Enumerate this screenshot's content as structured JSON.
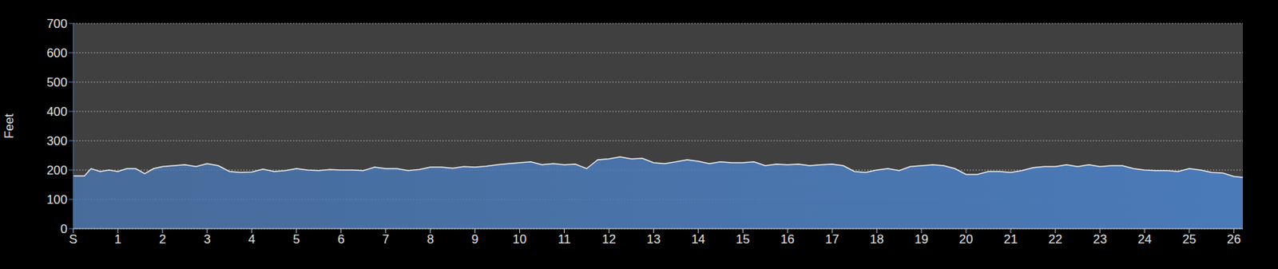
{
  "chart_data": {
    "type": "area",
    "y_label": "Feet",
    "x": [
      0,
      0.25,
      0.4,
      0.6,
      0.8,
      1,
      1.2,
      1.4,
      1.6,
      1.8,
      2,
      2.25,
      2.5,
      2.75,
      3,
      3.25,
      3.5,
      3.75,
      4,
      4.25,
      4.5,
      4.75,
      5,
      5.25,
      5.5,
      5.75,
      6,
      6.25,
      6.5,
      6.75,
      7,
      7.25,
      7.5,
      7.75,
      8,
      8.25,
      8.5,
      8.75,
      9,
      9.25,
      9.5,
      9.75,
      10,
      10.25,
      10.5,
      10.75,
      11,
      11.25,
      11.5,
      11.75,
      12,
      12.25,
      12.5,
      12.75,
      13,
      13.25,
      13.5,
      13.75,
      14,
      14.25,
      14.5,
      14.75,
      15,
      15.25,
      15.5,
      15.75,
      16,
      16.25,
      16.5,
      16.75,
      17,
      17.25,
      17.5,
      17.75,
      18,
      18.25,
      18.5,
      18.75,
      19,
      19.25,
      19.5,
      19.75,
      20,
      20.25,
      20.5,
      20.75,
      21,
      21.25,
      21.5,
      21.75,
      22,
      22.25,
      22.5,
      22.75,
      23,
      23.25,
      23.5,
      23.75,
      24,
      24.25,
      24.5,
      24.75,
      25,
      25.25,
      25.5,
      25.75,
      26,
      26.2
    ],
    "values": [
      180,
      180,
      205,
      195,
      200,
      195,
      205,
      205,
      188,
      205,
      212,
      215,
      218,
      212,
      222,
      215,
      195,
      192,
      193,
      203,
      195,
      198,
      205,
      200,
      198,
      202,
      200,
      200,
      198,
      210,
      205,
      205,
      198,
      202,
      210,
      210,
      206,
      212,
      210,
      213,
      218,
      222,
      225,
      228,
      218,
      222,
      218,
      220,
      205,
      235,
      238,
      245,
      238,
      240,
      225,
      222,
      228,
      235,
      230,
      222,
      228,
      225,
      225,
      228,
      215,
      220,
      218,
      220,
      215,
      218,
      220,
      215,
      195,
      192,
      200,
      205,
      198,
      212,
      215,
      218,
      215,
      205,
      185,
      185,
      195,
      195,
      192,
      198,
      208,
      212,
      212,
      218,
      212,
      218,
      212,
      215,
      215,
      205,
      200,
      198,
      198,
      195,
      205,
      200,
      192,
      190,
      178,
      175
    ],
    "color": "#4a7ab8",
    "xlim": [
      0,
      26.2
    ],
    "xticks": [
      {
        "value": 0,
        "label": "S"
      },
      1,
      2,
      3,
      4,
      5,
      6,
      7,
      8,
      9,
      10,
      11,
      12,
      13,
      14,
      15,
      16,
      17,
      18,
      19,
      20,
      21,
      22,
      23,
      24,
      25,
      26
    ],
    "ylim": [
      0,
      700
    ],
    "yticks": [
      0,
      100,
      200,
      300,
      400,
      500,
      600,
      700
    ],
    "grid": true
  }
}
